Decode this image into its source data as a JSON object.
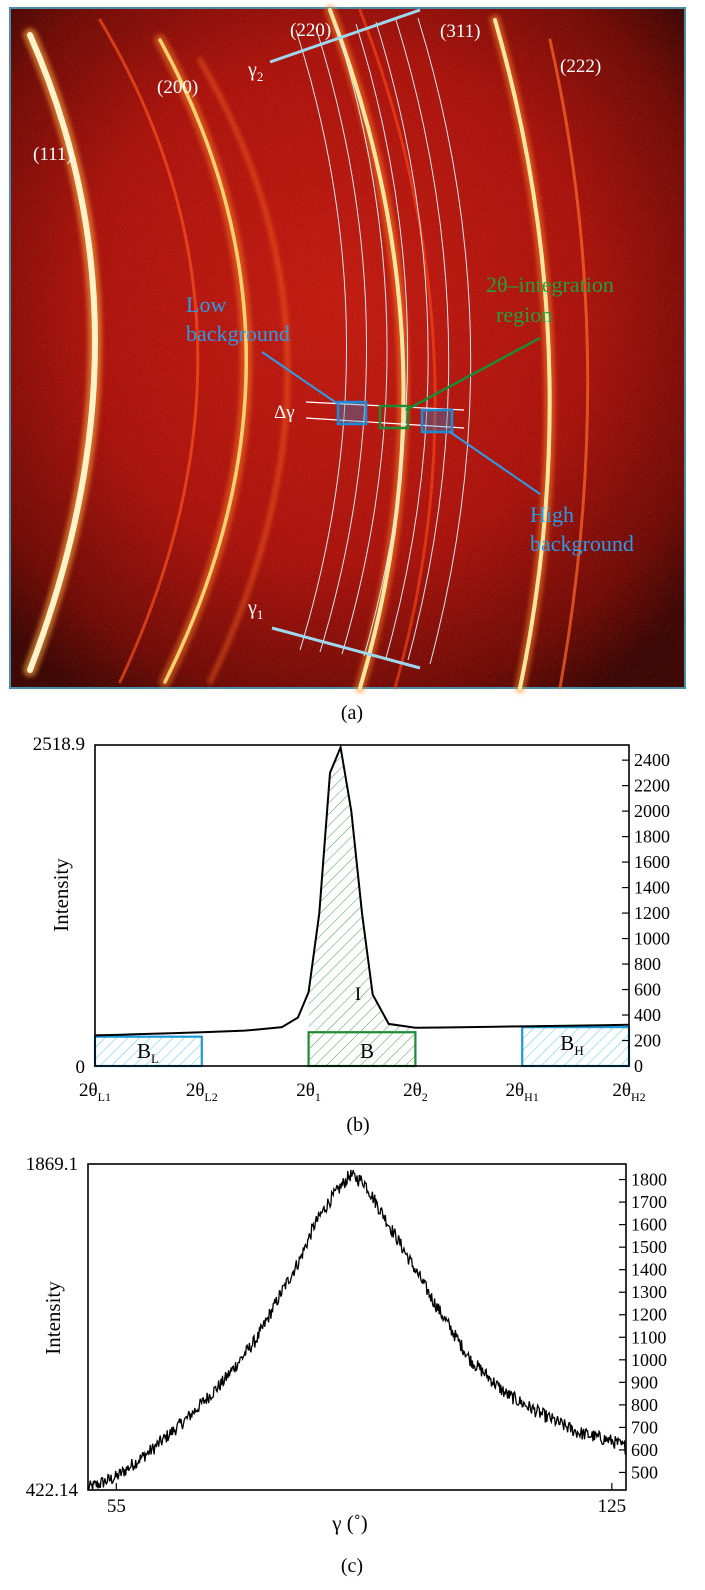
{
  "panel_a": {
    "label": "(a)",
    "ring_labels": [
      "(111)",
      "(200)",
      "(220)",
      "(311)",
      "(222)"
    ],
    "gamma2": "γ2",
    "gamma1": "γ1",
    "delta_gamma": "Δγ",
    "low_background": [
      "Low",
      "background"
    ],
    "integration_region": [
      "2θ–integration",
      "region"
    ],
    "high_background": [
      "High",
      "background"
    ],
    "colors": {
      "blue_box": "#1c8ad6",
      "green_box": "#1e8a32",
      "label_blue": "#2e9be8",
      "label_green": "#23a03a"
    }
  },
  "panel_b": {
    "label": "(b)",
    "ylabel": "Intensity",
    "left_ticks": [
      "2518.9",
      "0"
    ],
    "right_ticks": [
      "2400",
      "2200",
      "2000",
      "1800",
      "1600",
      "1400",
      "1200",
      "1000",
      "800",
      "600",
      "400",
      "200",
      "0"
    ],
    "x_ticks": [
      {
        "base": "2θ",
        "sub": "L1"
      },
      {
        "base": "2θ",
        "sub": "L2"
      },
      {
        "base": "2θ",
        "sub": "1"
      },
      {
        "base": "2θ",
        "sub": "2"
      },
      {
        "base": "2θ",
        "sub": "H1"
      },
      {
        "base": "2θ",
        "sub": "H2"
      }
    ],
    "region_labels": [
      {
        "base": "B",
        "sub": "L"
      },
      {
        "base": "B",
        "sub": ""
      },
      {
        "base": "B",
        "sub": "H"
      }
    ],
    "peak_label": "I"
  },
  "panel_c": {
    "label": "(c)",
    "ylabel": "Intensity",
    "xlabel": "γ (˚)",
    "left_ticks": [
      "1869.1",
      "422.14"
    ],
    "right_ticks": [
      "1800",
      "1700",
      "1600",
      "1500",
      "1400",
      "1300",
      "1200",
      "1100",
      "1000",
      "900",
      "800",
      "700",
      "600",
      "500"
    ],
    "x_ticks": [
      "55",
      "125"
    ]
  },
  "chart_data": [
    {
      "type": "line",
      "title": "(b)",
      "xlabel": "",
      "ylabel": "Intensity",
      "ylim": [
        0,
        2518.9
      ],
      "x_tick_labels": [
        "2θL1",
        "2θL2",
        "2θ1",
        "2θ2",
        "2θH1",
        "2θH2"
      ],
      "x": [
        0,
        0.5,
        1,
        1.5,
        2,
        2.5,
        2.8,
        3.0,
        3.5,
        3.8,
        4.0,
        4.2,
        4.4,
        4.6,
        4.8,
        5.0,
        5.2,
        5.5,
        6,
        6.5,
        7,
        7.5,
        8,
        8.5,
        9,
        9.5,
        10
      ],
      "values": [
        240,
        246,
        252,
        258,
        265,
        272,
        278,
        285,
        305,
        380,
        580,
        1200,
        2300,
        2500,
        2000,
        1200,
        560,
        330,
        300,
        302,
        305,
        308,
        311,
        314,
        317,
        320,
        323
      ],
      "shaded_regions": [
        {
          "name": "BL",
          "x": [
            0,
            2
          ],
          "y": 230
        },
        {
          "name": "B",
          "x": [
            4,
            6
          ],
          "y": 265
        },
        {
          "name": "BH",
          "x": [
            8,
            10
          ],
          "y": 305
        }
      ],
      "peak_area_label": "I",
      "grid": false
    },
    {
      "type": "line",
      "title": "(c)",
      "xlabel": "γ (˚)",
      "ylabel": "Intensity",
      "xlim": [
        55,
        125
      ],
      "ylim": [
        422.14,
        1869.1
      ],
      "x": [
        51,
        55,
        60,
        65,
        70,
        75,
        78,
        81,
        83,
        85,
        87,
        88,
        90,
        92,
        95,
        100,
        105,
        110,
        115,
        120,
        125,
        127
      ],
      "values": [
        430,
        480,
        600,
        740,
        900,
        1100,
        1280,
        1450,
        1600,
        1700,
        1780,
        1820,
        1790,
        1680,
        1520,
        1250,
        1000,
        850,
        760,
        680,
        640,
        610
      ],
      "grid": false
    }
  ]
}
